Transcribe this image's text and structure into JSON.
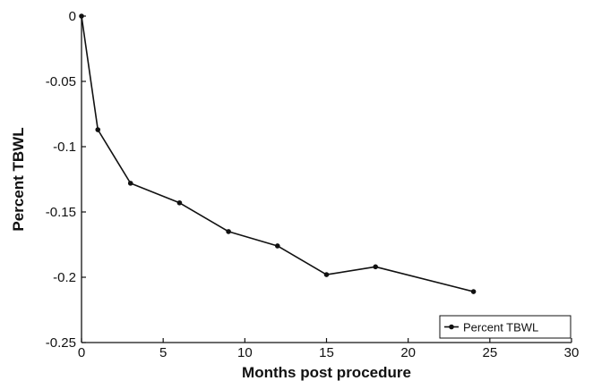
{
  "chart_data": {
    "type": "line",
    "title": "",
    "xlabel": "Months post procedure",
    "ylabel": "Percent TBWL",
    "xlim": [
      0,
      30
    ],
    "ylim": [
      -0.25,
      0
    ],
    "xticks": [
      0,
      5,
      10,
      15,
      20,
      25,
      30
    ],
    "yticks": [
      0,
      -0.05,
      -0.1,
      -0.15,
      -0.2,
      -0.25
    ],
    "xtick_labels": [
      "0",
      "5",
      "10",
      "15",
      "20",
      "25",
      "30"
    ],
    "ytick_labels": [
      "0",
      "-0.05",
      "-0.1",
      "-0.15",
      "-0.2",
      "-0.25"
    ],
    "grid": false,
    "legend_position": "bottom-right",
    "series": [
      {
        "name": "Percent TBWL",
        "color": "#111111",
        "x": [
          0,
          1,
          3,
          6,
          9,
          12,
          15,
          18,
          24
        ],
        "y": [
          0,
          -0.087,
          -0.128,
          -0.143,
          -0.165,
          -0.176,
          -0.198,
          -0.192,
          -0.211
        ]
      }
    ]
  }
}
